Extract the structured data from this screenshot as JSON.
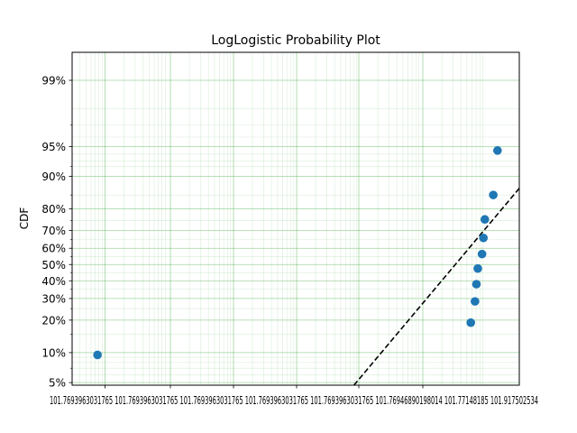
{
  "chart_data": {
    "type": "scatter",
    "title": "LogLogistic Probability Plot",
    "ylabel": "CDF",
    "xlabel": "",
    "x_scale": "log",
    "y_scale": "logit",
    "grid": true,
    "xlim": [
      101.6,
      101.9175
    ],
    "ylim": [
      0.047,
      0.995
    ],
    "x_tick_labels_text": "101.7693963031765 101.7693963031765 101.7693963031765 101.7693963031765 101.7693963031765 101.76946890198014 101.77148185 101.917502534",
    "y_ticks": [
      {
        "value": 0.05,
        "label": "5%"
      },
      {
        "value": 0.1,
        "label": "10%"
      },
      {
        "value": 0.2,
        "label": "20%"
      },
      {
        "value": 0.3,
        "label": "30%"
      },
      {
        "value": 0.4,
        "label": "40%"
      },
      {
        "value": 0.5,
        "label": "50%"
      },
      {
        "value": 0.6,
        "label": "60%"
      },
      {
        "value": 0.7,
        "label": "70%"
      },
      {
        "value": 0.8,
        "label": "80%"
      },
      {
        "value": 0.9,
        "label": "90%"
      },
      {
        "value": 0.95,
        "label": "95%"
      },
      {
        "value": 0.99,
        "label": "99%"
      }
    ],
    "series": [
      {
        "marker_color": "#1f77b4",
        "points": [
          {
            "x": 101.618,
            "y": 0.095
          },
          {
            "x": 101.883,
            "y": 0.19
          },
          {
            "x": 101.886,
            "y": 0.285
          },
          {
            "x": 101.887,
            "y": 0.38
          },
          {
            "x": 101.888,
            "y": 0.475
          },
          {
            "x": 101.891,
            "y": 0.565
          },
          {
            "x": 101.892,
            "y": 0.66
          },
          {
            "x": 101.893,
            "y": 0.755
          },
          {
            "x": 101.899,
            "y": 0.85
          },
          {
            "x": 101.902,
            "y": 0.945
          }
        ]
      }
    ],
    "fit_line": {
      "style": "dashed",
      "color": "#000000",
      "points": [
        {
          "x": 101.8,
          "y": 0.047
        },
        {
          "x": 101.9175,
          "y": 0.87
        }
      ]
    },
    "grid_color": "#2ca02c"
  }
}
